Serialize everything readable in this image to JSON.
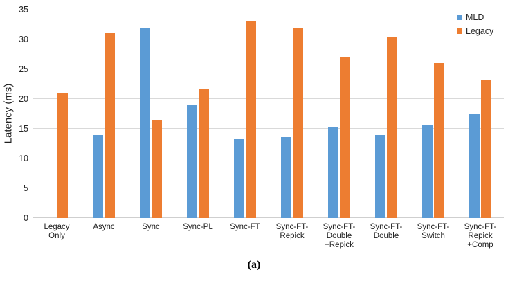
{
  "figure": {
    "caption": "(a)"
  },
  "colors": {
    "mld": "#5B9BD5",
    "legacy": "#ED7D31",
    "gridline": "#D9D9D9",
    "axis_text": "#262626"
  },
  "chart_data": {
    "type": "bar",
    "title": "",
    "xlabel": "",
    "ylabel": "Latency (ms)",
    "ylim": [
      0,
      35
    ],
    "yticks": [
      0,
      5,
      10,
      15,
      20,
      25,
      30,
      35
    ],
    "grid": true,
    "legend_position": "top-right",
    "categories": [
      "Legacy Only",
      "Async",
      "Sync",
      "Sync-PL",
      "Sync-FT",
      "Sync-FT-Repick",
      "Sync-FT-Double+Repick",
      "Sync-FT-Double",
      "Sync-FT-Switch",
      "Sync-FT-Repick+Comp"
    ],
    "category_label_lines": [
      [
        "Legacy",
        "Only"
      ],
      [
        "Async"
      ],
      [
        "Sync"
      ],
      [
        "Sync-PL"
      ],
      [
        "Sync-FT"
      ],
      [
        "Sync-FT-",
        "Repick"
      ],
      [
        "Sync-FT-",
        "Double",
        "+Repick"
      ],
      [
        "Sync-FT-",
        "Double"
      ],
      [
        "Sync-FT-",
        "Switch"
      ],
      [
        "Sync-FT-",
        "Repick",
        "+Comp"
      ]
    ],
    "series": [
      {
        "name": "MLD",
        "color": "#5B9BD5",
        "values": [
          null,
          14,
          32,
          19,
          13.3,
          13.6,
          15.3,
          14,
          15.7,
          17.6
        ]
      },
      {
        "name": "Legacy",
        "color": "#ED7D31",
        "values": [
          21,
          31,
          16.5,
          21.7,
          33,
          32,
          27.1,
          30.4,
          26,
          23.2
        ]
      }
    ]
  }
}
